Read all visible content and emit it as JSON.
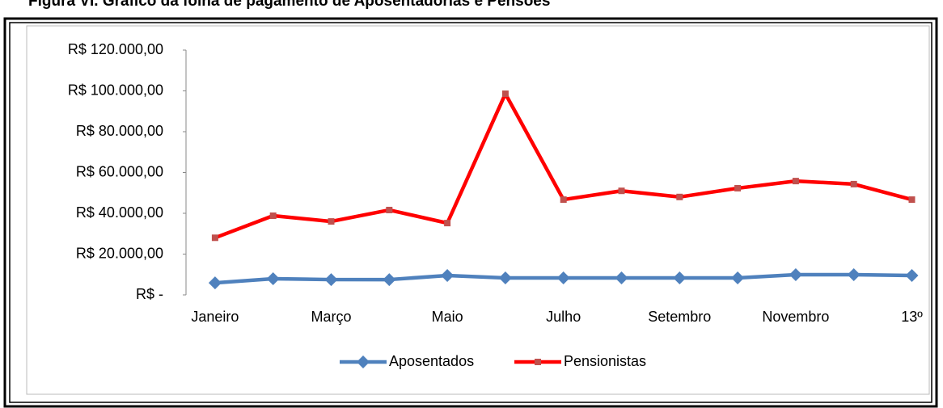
{
  "chart_data": {
    "type": "line",
    "title": "Figura VI.  Gráfico da folha de pagamento de Aposentadorias e Pensões",
    "categories": [
      "Janeiro",
      null,
      "Março",
      null,
      "Maio",
      null,
      "Julho",
      null,
      "Setembro",
      null,
      "Novembro",
      null,
      "13º"
    ],
    "series": [
      {
        "name": "Aposentados",
        "color": "#4f81bd",
        "marker": "diamond",
        "values": [
          5900,
          7900,
          7500,
          7500,
          9500,
          8300,
          8300,
          8300,
          8300,
          8300,
          9900,
          9900,
          9500
        ]
      },
      {
        "name": "Pensionistas",
        "color": "#ff0000",
        "marker": "square",
        "values": [
          28000,
          38800,
          36000,
          41600,
          35200,
          98600,
          46700,
          51000,
          48000,
          52300,
          55800,
          54300,
          46700
        ]
      }
    ],
    "ylim": [
      0,
      120000
    ],
    "yticks": [
      {
        "value": 0,
        "label": "R$ -"
      },
      {
        "value": 20000,
        "label": "R$ 20.000,00"
      },
      {
        "value": 40000,
        "label": "R$ 40.000,00"
      },
      {
        "value": 60000,
        "label": "R$ 60.000,00"
      },
      {
        "value": 80000,
        "label": "R$ 80.000,00"
      },
      {
        "value": 100000,
        "label": "R$ 100.000,00"
      },
      {
        "value": 120000,
        "label": "R$ 120.000,00"
      }
    ],
    "legend": "bottom",
    "grid": false
  }
}
